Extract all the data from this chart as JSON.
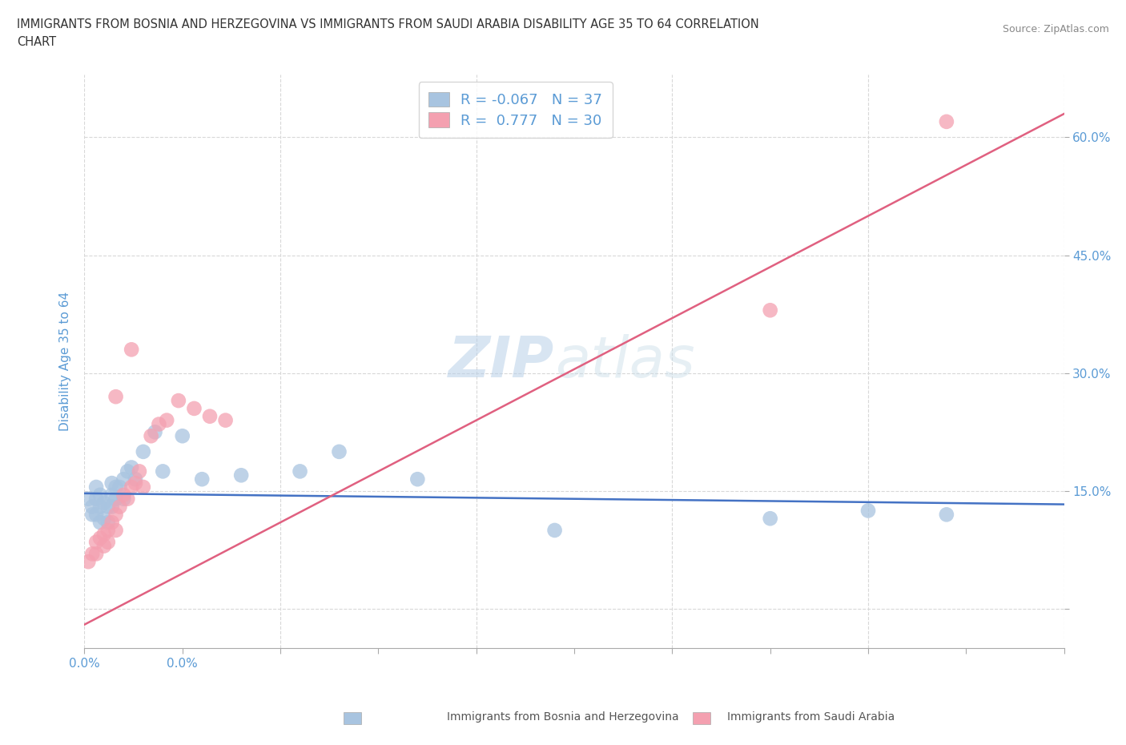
{
  "title_line1": "IMMIGRANTS FROM BOSNIA AND HERZEGOVINA VS IMMIGRANTS FROM SAUDI ARABIA DISABILITY AGE 35 TO 64 CORRELATION",
  "title_line2": "CHART",
  "source": "Source: ZipAtlas.com",
  "ylabel": "Disability Age 35 to 64",
  "xlim": [
    0.0,
    0.25
  ],
  "ylim": [
    -0.05,
    0.68
  ],
  "xticks": [
    0.0,
    0.025,
    0.05,
    0.075,
    0.1,
    0.125,
    0.15,
    0.175,
    0.2,
    0.225,
    0.25
  ],
  "xtick_labels_show": {
    "0.0": "0.0%"
  },
  "ytick_positions": [
    0.0,
    0.15,
    0.3,
    0.45,
    0.6
  ],
  "ytick_labels": [
    "",
    "15.0%",
    "30.0%",
    "45.0%",
    "60.0%"
  ],
  "bosnia_R": -0.067,
  "bosnia_N": 37,
  "saudi_R": 0.777,
  "saudi_N": 30,
  "bosnia_color": "#a8c4e0",
  "saudi_color": "#f4a0b0",
  "bosnia_line_color": "#4472c4",
  "saudi_line_color": "#e06080",
  "watermark_zip": "ZIP",
  "watermark_atlas": "atlas",
  "legend_labels": [
    "Immigrants from Bosnia and Herzegovina",
    "Immigrants from Saudi Arabia"
  ],
  "bosnia_x": [
    0.001,
    0.002,
    0.002,
    0.003,
    0.003,
    0.003,
    0.004,
    0.004,
    0.004,
    0.005,
    0.005,
    0.006,
    0.006,
    0.007,
    0.007,
    0.007,
    0.008,
    0.008,
    0.009,
    0.01,
    0.01,
    0.011,
    0.012,
    0.013,
    0.015,
    0.018,
    0.02,
    0.025,
    0.03,
    0.04,
    0.055,
    0.065,
    0.085,
    0.12,
    0.175,
    0.2,
    0.22
  ],
  "bosnia_y": [
    0.14,
    0.13,
    0.12,
    0.155,
    0.14,
    0.12,
    0.145,
    0.13,
    0.11,
    0.135,
    0.115,
    0.13,
    0.11,
    0.16,
    0.145,
    0.13,
    0.155,
    0.14,
    0.155,
    0.165,
    0.14,
    0.175,
    0.18,
    0.165,
    0.2,
    0.225,
    0.175,
    0.22,
    0.165,
    0.17,
    0.175,
    0.2,
    0.165,
    0.1,
    0.115,
    0.125,
    0.12
  ],
  "saudi_x": [
    0.001,
    0.002,
    0.003,
    0.003,
    0.004,
    0.005,
    0.005,
    0.006,
    0.006,
    0.007,
    0.008,
    0.008,
    0.009,
    0.01,
    0.011,
    0.012,
    0.013,
    0.014,
    0.015,
    0.017,
    0.019,
    0.021,
    0.024,
    0.028,
    0.032,
    0.036,
    0.012,
    0.008,
    0.175,
    0.22
  ],
  "saudi_y": [
    0.06,
    0.07,
    0.085,
    0.07,
    0.09,
    0.095,
    0.08,
    0.1,
    0.085,
    0.11,
    0.12,
    0.1,
    0.13,
    0.145,
    0.14,
    0.155,
    0.16,
    0.175,
    0.155,
    0.22,
    0.235,
    0.24,
    0.265,
    0.255,
    0.245,
    0.24,
    0.33,
    0.27,
    0.38,
    0.62
  ],
  "grid_color": "#d8d8d8",
  "title_color": "#5b9bd5",
  "axis_label_color": "#5b9bd5",
  "tick_color": "#5b9bd5",
  "legend_text_color": "#5b9bd5"
}
